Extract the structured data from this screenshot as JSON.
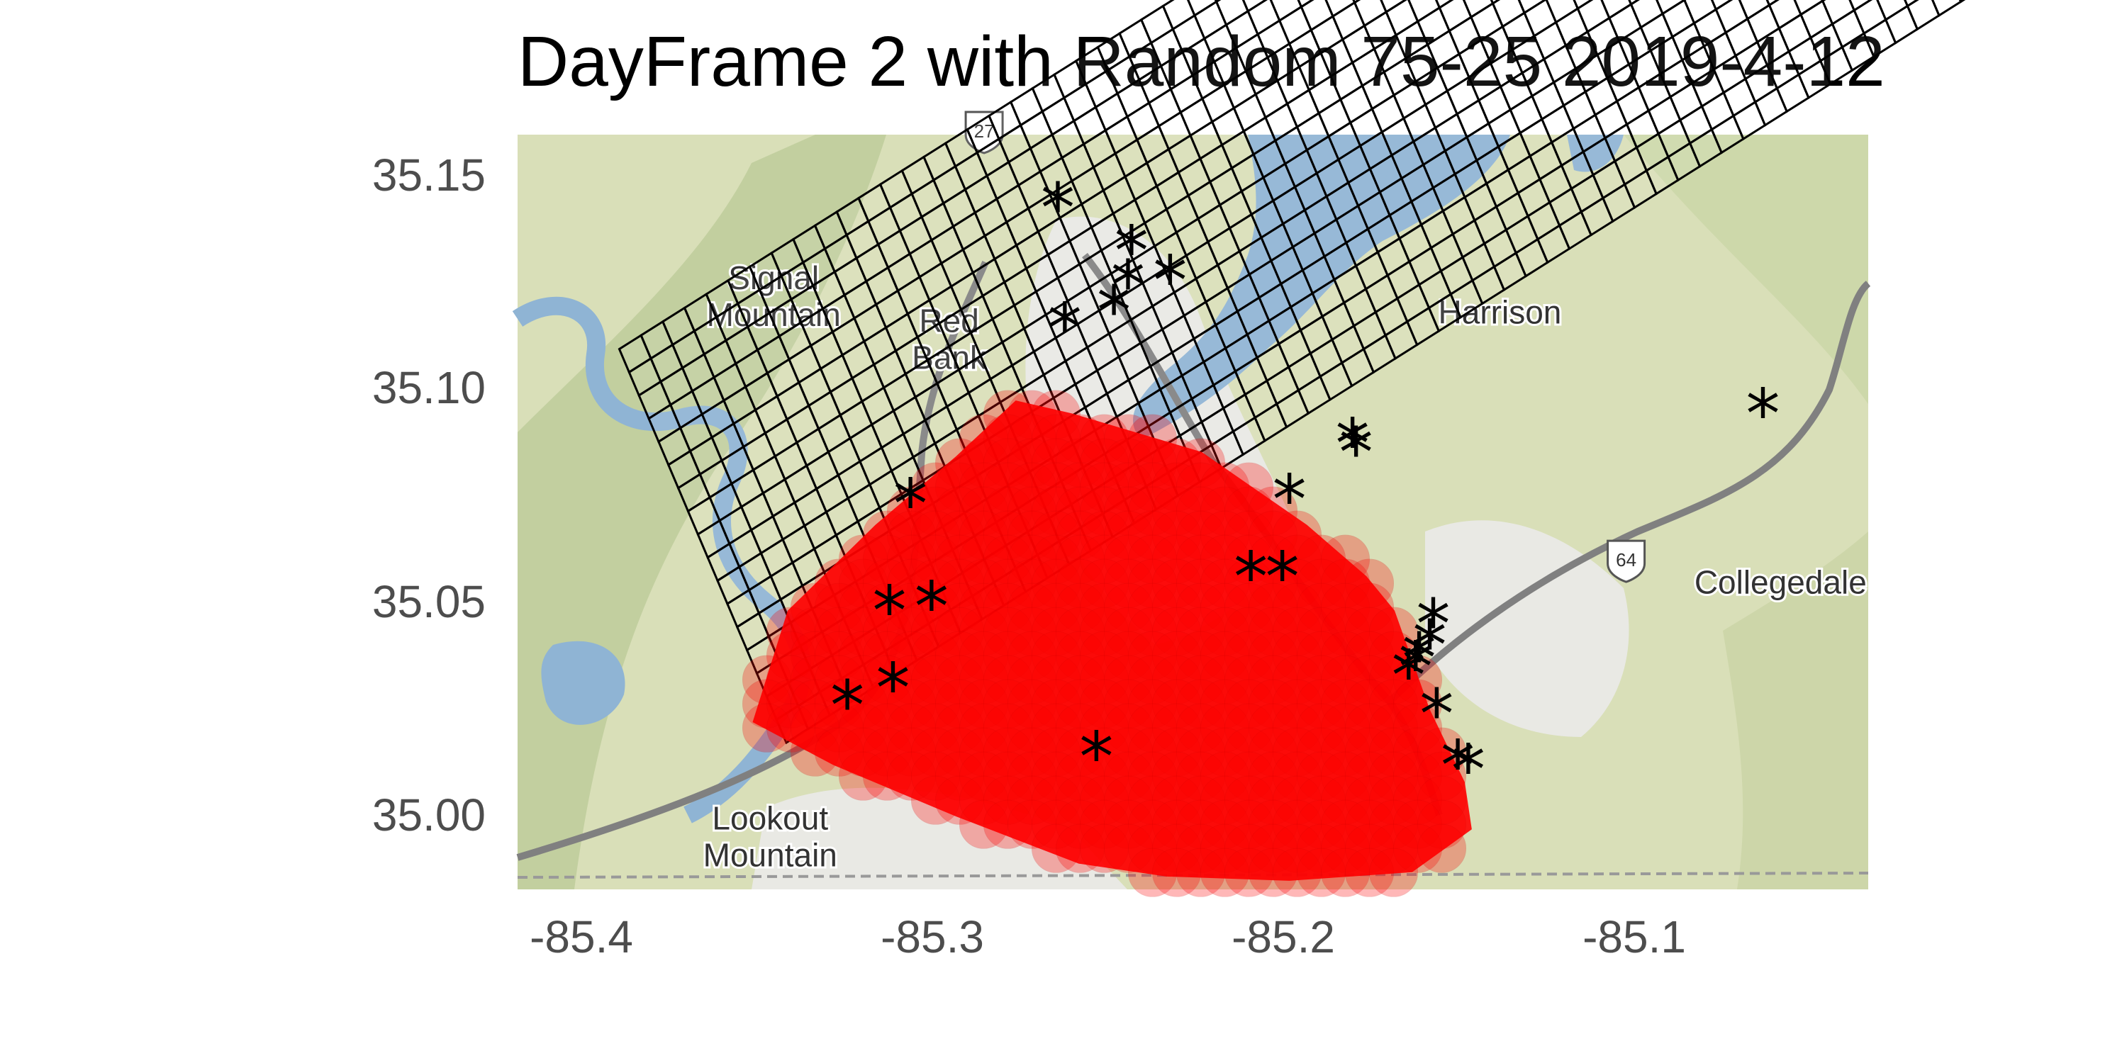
{
  "title": "DayFrame 2 with Random 75-25 2019-4-12",
  "axes": {
    "x_ticks": [
      "-85.4",
      "-85.3",
      "-85.2",
      "-85.1"
    ],
    "y_ticks": [
      "35.15",
      "35.10",
      "35.05",
      "35.00"
    ],
    "x_range": [
      -85.42,
      -85.035
    ],
    "y_range": [
      34.983,
      35.159
    ]
  },
  "basemap": {
    "place_labels": [
      {
        "name": "Signal Mountain",
        "lon": -85.347,
        "lat": 35.123
      },
      {
        "name": "Red Bank",
        "lon": -85.297,
        "lat": 35.113
      },
      {
        "name": "Harrison",
        "lon": -85.14,
        "lat": 35.115
      },
      {
        "name": "Collegedale",
        "lon": -85.06,
        "lat": 35.052
      },
      {
        "name": "Lookout Mountain",
        "lon": -85.348,
        "lat": 34.997
      }
    ],
    "route_shields": [
      {
        "label": "27",
        "lon": -85.287,
        "lat": 35.16
      },
      {
        "label": "64",
        "lon": -85.104,
        "lat": 35.06
      }
    ],
    "colors": {
      "land": "#d9dfb8",
      "water": "#8fb4d4",
      "urban": "#ebebeb",
      "road": "#808080"
    }
  },
  "grid": {
    "lon_start": -85.391,
    "lat_start": 35.109,
    "col_step_lon": 0.0062,
    "col_step_lat": 0.0032,
    "row_step_lon": 0.0028,
    "row_step_lat": -0.0054,
    "cols": 56,
    "rows": 17,
    "stroke_color": "#000000",
    "fill_color": "rgba(255,255,255,0.08)"
  },
  "hotspot": {
    "color": "#ff0000",
    "opacity": 0.55,
    "outline": [
      [
        -85.278,
        35.097
      ],
      [
        -85.262,
        35.094
      ],
      [
        -85.225,
        35.085
      ],
      [
        -85.195,
        35.068
      ],
      [
        -85.178,
        35.056
      ],
      [
        -85.17,
        35.048
      ],
      [
        -85.16,
        35.025
      ],
      [
        -85.15,
        35.008
      ],
      [
        -85.148,
        34.997
      ],
      [
        -85.165,
        34.987
      ],
      [
        -85.2,
        34.985
      ],
      [
        -85.235,
        34.986
      ],
      [
        -85.26,
        34.989
      ],
      [
        -85.295,
        35.0
      ],
      [
        -85.33,
        35.012
      ],
      [
        -85.353,
        35.022
      ],
      [
        -85.343,
        35.048
      ],
      [
        -85.318,
        35.068
      ],
      [
        -85.295,
        35.084
      ]
    ]
  },
  "incidents": {
    "marker": "*",
    "color": "#000000",
    "points": [
      [
        -85.266,
        35.142
      ],
      [
        -85.245,
        35.132
      ],
      [
        -85.246,
        35.124
      ],
      [
        -85.234,
        35.125
      ],
      [
        -85.25,
        35.118
      ],
      [
        -85.264,
        35.114
      ],
      [
        -85.182,
        35.087
      ],
      [
        -85.181,
        35.085
      ],
      [
        -85.065,
        35.094
      ],
      [
        -85.308,
        35.073
      ],
      [
        -85.2,
        35.074
      ],
      [
        -85.314,
        35.048
      ],
      [
        -85.302,
        35.049
      ],
      [
        -85.211,
        35.056
      ],
      [
        -85.202,
        35.056
      ],
      [
        -85.159,
        35.045
      ],
      [
        -85.16,
        35.04
      ],
      [
        -85.163,
        35.037
      ],
      [
        -85.164,
        35.035
      ],
      [
        -85.166,
        35.033
      ],
      [
        -85.313,
        35.03
      ],
      [
        -85.326,
        35.026
      ],
      [
        -85.158,
        35.024
      ],
      [
        -85.255,
        35.014
      ],
      [
        -85.152,
        35.012
      ],
      [
        -85.149,
        35.011
      ]
    ]
  }
}
